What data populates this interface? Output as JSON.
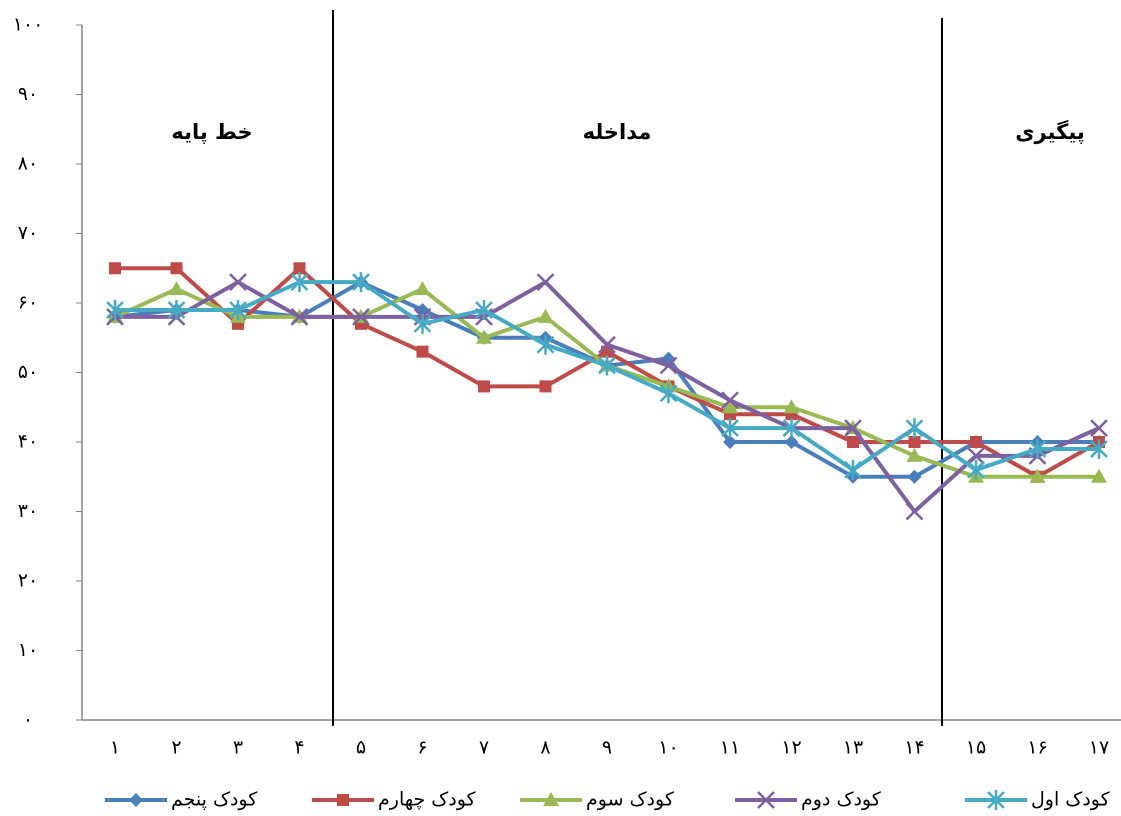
{
  "chart_data": {
    "type": "line",
    "phases": [
      {
        "label": "خط پایه"
      },
      {
        "label": "مداخله"
      },
      {
        "label": "پیگیری"
      }
    ],
    "categories": [
      "۱",
      "۲",
      "۳",
      "۴",
      "۵",
      "۶",
      "۷",
      "۸",
      "۹",
      "۱۰",
      "۱۱",
      "۱۲",
      "۱۳",
      "۱۴",
      "۱۵",
      "۱۶",
      "۱۷"
    ],
    "series": [
      {
        "name": "کودک پنجم",
        "color": "#4a7ebb",
        "marker": "diamond",
        "values": [
          58,
          59,
          59,
          58,
          63,
          59,
          55,
          55,
          51,
          52,
          40,
          40,
          35,
          35,
          40,
          40,
          40
        ]
      },
      {
        "name": "کودک چهارم",
        "color": "#be4b48",
        "marker": "square",
        "values": [
          65,
          65,
          57,
          65,
          57,
          53,
          48,
          48,
          53,
          48,
          44,
          44,
          40,
          40,
          40,
          35,
          40
        ]
      },
      {
        "name": "کودک سوم",
        "color": "#98b954",
        "marker": "triangle",
        "values": [
          58,
          62,
          58,
          58,
          58,
          62,
          55,
          58,
          51,
          48,
          45,
          45,
          42,
          38,
          35,
          35,
          35
        ]
      },
      {
        "name": "کودک دوم",
        "color": "#7d60a0",
        "marker": "x",
        "values": [
          58,
          58,
          63,
          58,
          58,
          58,
          58,
          63,
          54,
          51,
          46,
          42,
          42,
          30,
          38,
          38,
          42
        ]
      },
      {
        "name": "کودک اول",
        "color": "#46aac5",
        "marker": "asterisk",
        "values": [
          59,
          59,
          59,
          63,
          63,
          57,
          59,
          54,
          51,
          47,
          42,
          42,
          36,
          42,
          36,
          39,
          39
        ]
      }
    ],
    "ylim": [
      0,
      100
    ],
    "yticks": [
      {
        "value": 0,
        "label": "۰"
      },
      {
        "value": 10,
        "label": "۱۰"
      },
      {
        "value": 20,
        "label": "۲۰"
      },
      {
        "value": 30,
        "label": "۳۰"
      },
      {
        "value": 40,
        "label": "۴۰"
      },
      {
        "value": 50,
        "label": "۵۰"
      },
      {
        "value": 60,
        "label": "۶۰"
      },
      {
        "value": 70,
        "label": "۷۰"
      },
      {
        "value": 80,
        "label": "۸۰"
      },
      {
        "value": 90,
        "label": "۹۰"
      },
      {
        "value": 100,
        "label": "۱۰۰"
      }
    ],
    "grid": false,
    "legend": "bottom"
  }
}
